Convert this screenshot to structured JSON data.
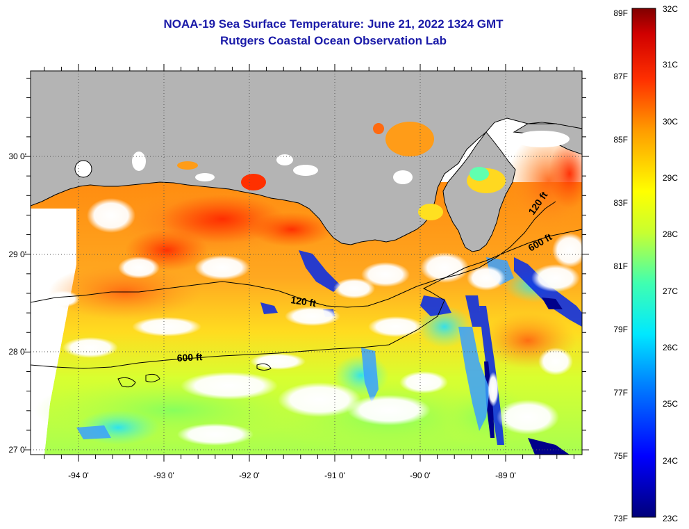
{
  "title": {
    "line1": "NOAA-19 Sea Surface Temperature:  June 21, 2022 1324 GMT",
    "line2": "Rutgers Coastal Ocean Observation Lab"
  },
  "map": {
    "lat_labels": [
      "30 0'",
      "29 0'",
      "28 0'",
      "27 0'"
    ],
    "lon_labels": [
      "-94 0'",
      "-93 0'",
      "-92 0'",
      "-91 0'",
      "-90 0'",
      "-89 0'"
    ],
    "contours": [
      "120 ft",
      "600 ft",
      "120 ft",
      "600 ft"
    ],
    "colors": {
      "land": "#b4b4b4",
      "coast": "#000000"
    }
  },
  "colorbar": {
    "fahrenheit": [
      "89F",
      "87F",
      "85F",
      "83F",
      "81F",
      "79F",
      "77F",
      "75F",
      "73F"
    ],
    "celsius": [
      "32C",
      "31C",
      "30C",
      "29C",
      "28C",
      "27C",
      "26C",
      "25C",
      "24C",
      "23C"
    ]
  }
}
